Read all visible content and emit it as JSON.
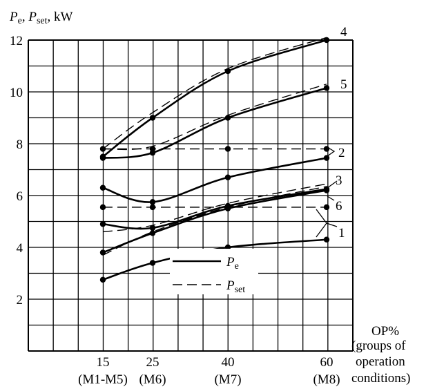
{
  "chart_data": {
    "type": "line",
    "ylabel": {
      "p1": "P",
      "s1": "e",
      "sep": ", ",
      "p2": "P",
      "s2": "set",
      "unit": ", kW"
    },
    "xlabel": [
      "OP%",
      "(groups of",
      "operation",
      "conditions)"
    ],
    "x_ticks": [
      {
        "value": 15,
        "label": "15",
        "group": "(M1-M5)"
      },
      {
        "value": 25,
        "label": "25",
        "group": "(M6)"
      },
      {
        "value": 40,
        "label": "40",
        "group": "(M7)"
      },
      {
        "value": 60,
        "label": "60",
        "group": "(M8)"
      }
    ],
    "y_ticks": [
      2,
      4,
      6,
      8,
      10,
      12
    ],
    "ylim": [
      0,
      12
    ],
    "grid": true,
    "legend": [
      {
        "style": "solid",
        "p": "P",
        "sub": "e"
      },
      {
        "style": "dashed",
        "p": "P",
        "sub": "set"
      }
    ],
    "series": [
      {
        "label": "4",
        "kind": "Pe",
        "x": [
          15,
          25,
          40,
          60
        ],
        "y": [
          7.5,
          9.0,
          10.8,
          12.0
        ]
      },
      {
        "label": "4",
        "kind": "Pset",
        "x": [
          15,
          25,
          40,
          60
        ],
        "y": [
          7.8,
          9.2,
          10.9,
          12.1
        ]
      },
      {
        "label": "5",
        "kind": "Pe",
        "x": [
          15,
          25,
          40,
          60
        ],
        "y": [
          7.45,
          7.65,
          9.0,
          10.15
        ]
      },
      {
        "label": "5",
        "kind": "Pset",
        "x": [
          15,
          25,
          40,
          60
        ],
        "y": [
          7.8,
          7.9,
          9.1,
          10.3
        ]
      },
      {
        "label": "2",
        "kind": "Pe",
        "x": [
          15,
          25,
          40,
          60
        ],
        "y": [
          6.3,
          5.75,
          6.7,
          7.45
        ]
      },
      {
        "label": "2",
        "kind": "Pset",
        "x": [
          15,
          25,
          40,
          60
        ],
        "y": [
          7.8,
          7.8,
          7.8,
          7.8
        ]
      },
      {
        "label": "3",
        "kind": "Pe",
        "x": [
          15,
          25,
          40,
          60
        ],
        "y": [
          4.9,
          4.75,
          5.6,
          6.25
        ]
      },
      {
        "label": "3",
        "kind": "Pset",
        "x": [
          15,
          25,
          40,
          60
        ],
        "y": [
          4.6,
          4.85,
          5.7,
          6.45
        ]
      },
      {
        "label": "6",
        "kind": "Pe",
        "x": [
          15,
          25,
          40,
          60
        ],
        "y": [
          3.8,
          4.55,
          5.5,
          6.2
        ]
      },
      {
        "label": "6",
        "kind": "Pset",
        "x": [
          15,
          25,
          40,
          60
        ],
        "y": [
          3.7,
          4.6,
          5.55,
          6.35
        ]
      },
      {
        "label": "1",
        "kind": "Pe",
        "x": [
          15,
          25,
          40,
          60
        ],
        "y": [
          2.75,
          3.4,
          4.0,
          4.3
        ]
      },
      {
        "label": "1",
        "kind": "Pset",
        "x": [
          15,
          25,
          40,
          60
        ],
        "y": [
          5.55,
          5.55,
          5.55,
          5.55
        ]
      }
    ],
    "curve_labels": [
      "4",
      "5",
      "2",
      "3",
      "6",
      "1"
    ]
  }
}
